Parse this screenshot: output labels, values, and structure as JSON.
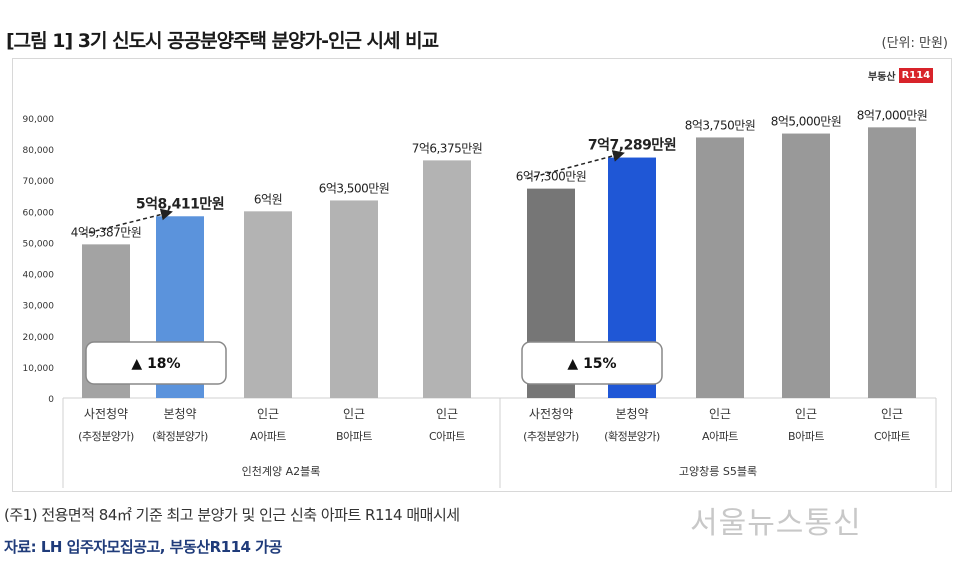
{
  "header": {
    "title": "[그림 1] 3기 신도시 공공분양주택 분양가-인근 시세 비교",
    "unit": "(단위: 만원)"
  },
  "logo": {
    "text": "부동산",
    "badge": "R114"
  },
  "chart_data": {
    "type": "bar",
    "title": "[그림 1] 3기 신도시 공공분양주택 분양가-인근 시세 비교",
    "ylabel": "",
    "xlabel": "",
    "ylim": [
      0,
      90000
    ],
    "yticks": [
      "0",
      "10,000",
      "20,000",
      "30,000",
      "40,000",
      "50,000",
      "60,000",
      "70,000",
      "80,000",
      "90,000"
    ],
    "grid": false,
    "groups": [
      {
        "name": "인천계양 A2블록",
        "categories": [
          [
            "사전청약",
            "(추정분양가)"
          ],
          [
            "본청약",
            "(확정분양가)"
          ],
          [
            "인근",
            "A아파트"
          ],
          [
            "인근",
            "B아파트"
          ],
          [
            "인근",
            "C아파트"
          ]
        ],
        "values": [
          49387,
          58411,
          60000,
          63500,
          76375
        ],
        "labels": [
          "4억9,387만원",
          "5억8,411만원",
          "6억원",
          "6억3,500만원",
          "7억6,375만원"
        ],
        "colors": [
          "#a3a3a3",
          "#5b93dc",
          "#b3b3b3",
          "#b3b3b3",
          "#b3b3b3"
        ],
        "change": "▲ 18%"
      },
      {
        "name": "고양창릉 S5블록",
        "categories": [
          [
            "사전청약",
            "(추정분양가)"
          ],
          [
            "본청약",
            "(확정분양가)"
          ],
          [
            "인근",
            "A아파트"
          ],
          [
            "인근",
            "B아파트"
          ],
          [
            "인근",
            "C아파트"
          ]
        ],
        "values": [
          67300,
          77289,
          83750,
          85000,
          87000
        ],
        "labels": [
          "6억7,300만원",
          "7억7,289만원",
          "8억3,750만원",
          "8억5,000만원",
          "8억7,000만원"
        ],
        "colors": [
          "#767676",
          "#1f57d6",
          "#999999",
          "#999999",
          "#999999"
        ],
        "change": "▲ 15%"
      }
    ]
  },
  "footer": {
    "note": "(주1) 전용면적 84㎡ 기준 최고 분양가 및 인근 신축 아파트 R114 매매시세",
    "source": "자료: LH 입주자모집공고, 부동산R114 가공",
    "watermark": "서울뉴스통신"
  }
}
